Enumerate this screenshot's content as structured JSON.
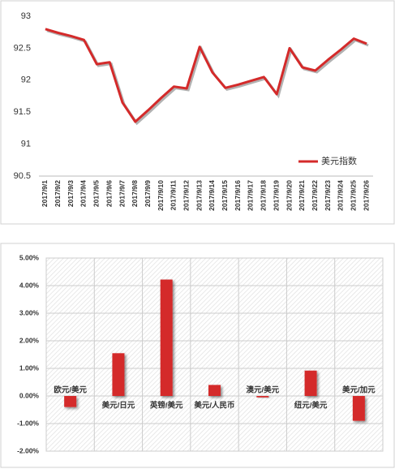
{
  "chart_data": [
    {
      "type": "line",
      "categories": [
        "2017/9/1",
        "2017/9/2",
        "2017/9/3",
        "2017/9/4",
        "2017/9/5",
        "2017/9/6",
        "2017/9/7",
        "2017/9/8",
        "2017/9/9",
        "2017/9/10",
        "2017/9/11",
        "2017/9/12",
        "2017/9/13",
        "2017/9/14",
        "2017/9/15",
        "2017/9/16",
        "2017/9/17",
        "2017/9/18",
        "2017/9/19",
        "2017/9/20",
        "2017/9/21",
        "2017/9/22",
        "2017/9/23",
        "2017/9/24",
        "2017/9/25",
        "2017/9/26"
      ],
      "series": [
        {
          "name": "美元指数",
          "color": "#d42a2a",
          "values": [
            92.8,
            92.74,
            92.69,
            92.63,
            92.25,
            92.28,
            91.65,
            91.35,
            91.53,
            91.72,
            91.9,
            91.87,
            92.52,
            92.12,
            91.88,
            91.93,
            91.99,
            92.05,
            91.78,
            92.5,
            92.2,
            92.15,
            92.32,
            92.48,
            92.65,
            92.57
          ]
        }
      ],
      "ylim": [
        90.5,
        93
      ],
      "yticks": [
        90.5,
        91,
        91.5,
        92,
        92.5,
        93
      ],
      "legend": "lower right"
    },
    {
      "type": "bar",
      "categories": [
        "欧元/美元",
        "美元/日元",
        "英镑/美元",
        "美元/人民币",
        "澳元/美元",
        "纽元/美元",
        "美元/加元"
      ],
      "values": [
        -0.4,
        1.55,
        4.22,
        0.4,
        -0.05,
        0.92,
        -0.9
      ],
      "color": "#d42a2a",
      "ylim": [
        -2,
        5
      ],
      "yticks": [
        {
          "value": -2,
          "label": "-2.00%"
        },
        {
          "value": -1,
          "label": "-1.00%"
        },
        {
          "value": 0,
          "label": "0.00%"
        },
        {
          "value": 1,
          "label": "1.00%"
        },
        {
          "value": 2,
          "label": "2.00%"
        },
        {
          "value": 3,
          "label": "3.00%"
        },
        {
          "value": 4,
          "label": "4.00%"
        },
        {
          "value": 5,
          "label": "5.00%"
        }
      ],
      "grid": true
    }
  ]
}
